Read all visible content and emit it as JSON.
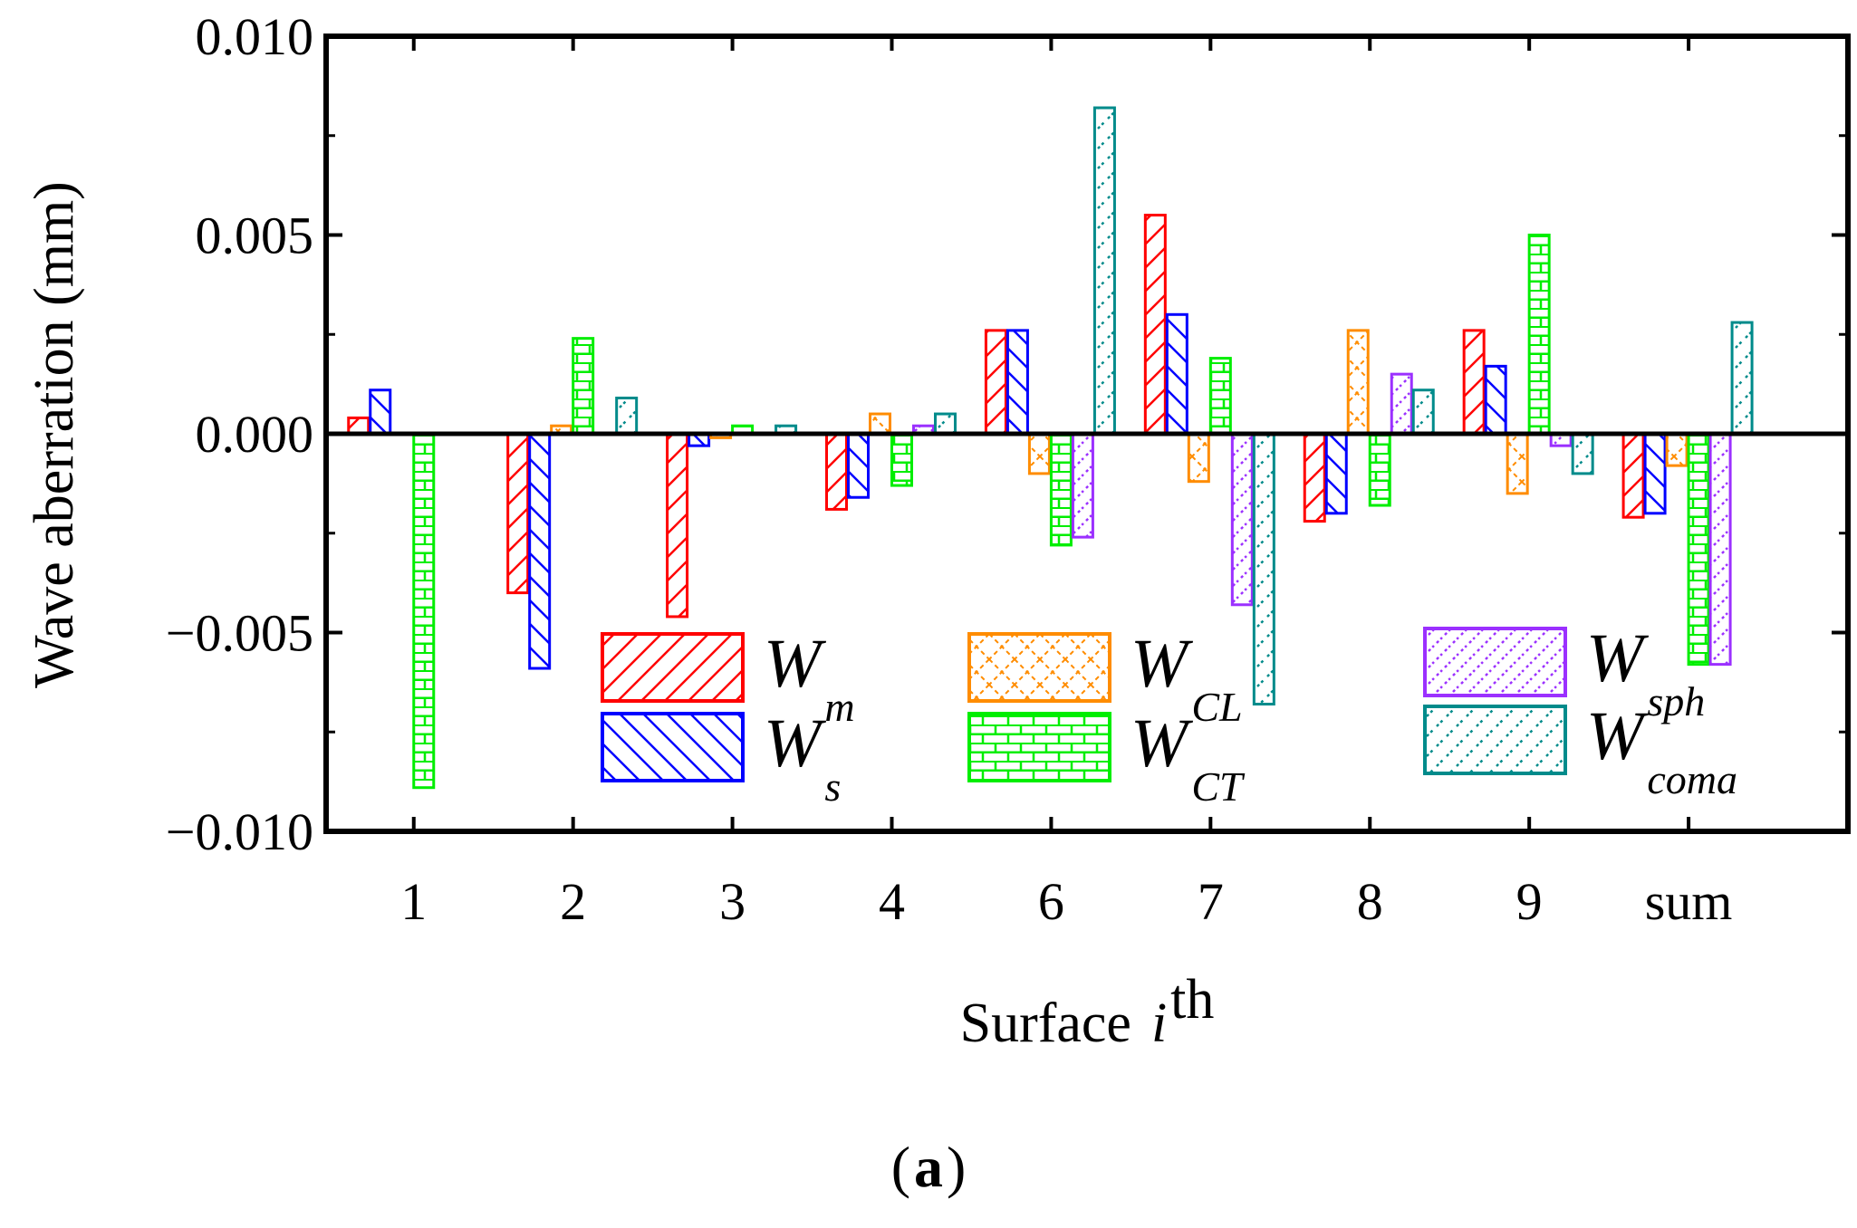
{
  "chart_data": {
    "type": "bar",
    "xlabel": "Surface",
    "xlabel_var": "i",
    "xlabel_sup": "th",
    "ylabel": "Wave aberration (mm)",
    "ylim": [
      -0.01,
      0.01
    ],
    "yticks": [
      "0.010",
      "0.005",
      "0.000",
      "−0.005",
      "−0.010"
    ],
    "ytick_values": [
      0.01,
      0.005,
      0.0,
      -0.005,
      -0.01
    ],
    "categories": [
      "1",
      "2",
      "3",
      "4",
      "6",
      "7",
      "8",
      "9",
      "sum"
    ],
    "caption_label": "a",
    "caption_open": "(",
    "caption_close": ")",
    "legend_prefix": "W",
    "series": [
      {
        "name": "m",
        "color": "#ff0000",
        "pattern": "diag-red",
        "values": [
          0.0004,
          -0.004,
          -0.0046,
          -0.0019,
          0.0026,
          0.0055,
          -0.0022,
          0.0026,
          -0.0021
        ]
      },
      {
        "name": "s",
        "color": "#0000ff",
        "pattern": "diag-blue",
        "values": [
          0.0011,
          -0.0059,
          -0.0003,
          -0.0016,
          0.0026,
          0.003,
          -0.002,
          0.0017,
          -0.002
        ]
      },
      {
        "name": "CL",
        "color": "#ff8c00",
        "pattern": "cross-orange",
        "values": [
          0.0,
          0.0002,
          -0.0001,
          0.0005,
          -0.001,
          -0.0012,
          0.0026,
          -0.0015,
          -0.0008
        ]
      },
      {
        "name": "CT",
        "color": "#00ee00",
        "pattern": "brick-green",
        "values": [
          -0.0089,
          0.0024,
          0.0002,
          -0.0013,
          -0.0028,
          0.0019,
          -0.0018,
          0.005,
          -0.0058
        ]
      },
      {
        "name": "sph",
        "color": "#9b30ff",
        "pattern": "dots-purple",
        "values": [
          0.0,
          0.0,
          0.0,
          0.0002,
          -0.0026,
          -0.0043,
          0.0015,
          -0.0003,
          -0.0058
        ]
      },
      {
        "name": "coma",
        "color": "#008b8b",
        "pattern": "dots-teal",
        "values": [
          0.0,
          0.0009,
          0.0002,
          0.0005,
          0.0082,
          -0.0068,
          0.0011,
          -0.001,
          0.0028
        ]
      }
    ]
  }
}
